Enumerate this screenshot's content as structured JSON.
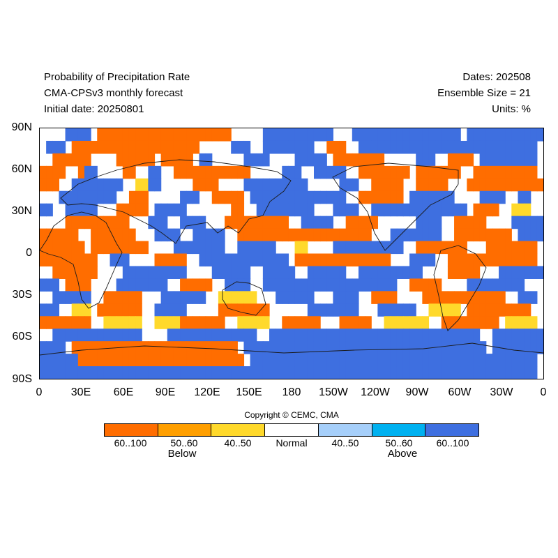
{
  "header": {
    "left": [
      "Probability of Precipitation Rate",
      "CMA-CPSv3 monthly forecast",
      "Initial date: 20250801"
    ],
    "right": [
      "Dates: 202508",
      "Ensemble Size = 21",
      "Units: %"
    ]
  },
  "axes": {
    "lat_labels": [
      "90N",
      "60N",
      "30N",
      "0",
      "30S",
      "60S",
      "90S"
    ],
    "lon_labels": [
      "0",
      "30E",
      "60E",
      "90E",
      "120E",
      "150E",
      "180",
      "150W",
      "120W",
      "90W",
      "60W",
      "30W",
      "0"
    ]
  },
  "copyright": "Copyright © CEMC, CMA",
  "colorbar": {
    "colors": [
      "#ff6d00",
      "#ff9f00",
      "#ffd92b",
      "#ffffff",
      "#a6cffa",
      "#00b1f0",
      "#3e6fe0"
    ],
    "labels": [
      "60..100",
      "50..60",
      "40..50",
      "Normal",
      "40..50",
      "50..60",
      "60..100"
    ],
    "groups": [
      "Below",
      "Above"
    ]
  },
  "map": {
    "region_sample": [
      "....hhhh.ooooooooooooooooooooo.....hhhhhhhhhhh...hhhhhhhhhhhhhhhhh.hhhhhhhhhhhh",
      ".hhh.oooooooooooooooooooo.....hhh..hhhhhhhh..ooo..hhhhhhhhhhhhhhhhhhhhhhhhhhhh",
      "..oooooo....oooooo.ooooo.hh.....hhhh....hhhhh.oooooooo.....hhh..oooo.hhhhhhhhh",
      "oooo..ohh....oo..hh..oooooooooooo.....hhh..hhhhh..oooooooo.ooooooo..oooooooooo",
      "ooo..hhhhhhhh..yyhh.....oooo....hhhhhhhhhh.....hhh..ooooo..ooooo...oooooooooooo",
      "...hhhhhhhhh..ooo.....hhh..ooooo.hhhhhhhhhhhhhhh..ooooooo.hhhhhhh....hhhh..hh..",
      "hh..hhhhh...ooooo.hhhhh.......oo..hhhhhhhhh...hhhh..hhhhhhhhhhhhhhh.oooo..yyy..",
      "....oooooooooo...hhh..hhhh...oooooooooo..hhhhh..ooooo......hhhh..ooooo....hhhhh",
      "oooooo..ooooooo...hhhh..hhhhh..ooooooooooooooooooooo...hhhhhhhh..ooooooooo.hhhh",
      "ooooooo.ooooooooo....hhhhhhhh..hhhhhh...yy....hhhhhhhhhhh..oooooooo...oooooooo",
      "ooooooooo..hhh....ooooo..hhhhhhhhhhhhhh.ooooooooooooooo...hhhh..oooooooooooooo",
      "..ooooooo....hhhhhhhhhh....hhhhhh..hhhhh..hhhhhh..hhhhhhhhhh....ooooo...hhhhhhh",
      "hhh.oooo....hhhhhhhh..ooooo..hhhh..hhhhhhhhhhhhhhhhhhhhh..ooooo....hhhhhhhhh...",
      "..hhhhhh..oooooo...hhhhhhh..yyyyyy...hhhhhh...hhhh..oooo....ooooooooooooo..hhh",
      "hhh..yyy.ooooooo..hhhhh.....oooooooo......hhhhhhhh...hhhhhh..yyyyy.oooooooooo.",
      "oooooooo..yyyyyy..yyyyooooooo..yyyyy..oooooo...ooooo..yyyyyyy..ooooooooo.yyyyy",
      "..hhhhhhhhhhhhhh....hhhhhhhhhhhhhh..hhhhhhhhhhhhhhhhhhhhhhhhhhhhhhhhh..hhhhhhhh",
      "hhhh.oooooooooooooooooooooooooo.hhhhhhhhhhhhhhhhhhhhhhhhhhhhhhhhhhhhhh.hhhhhhhh",
      "hhhhhhoooooooooooooooooooooooooo.hhhhhhhhhhhhhhhhhhhhhhhhhhhhhhhhhhhhhhhhhhhhh",
      "hhhhhhhhhhhhhhhhhhhhhhhhhhhhhhhhhhhhhhhhhhhhhhhhhhhhhhhhhhhhhhhhhhhhhhhhhhhhhh"
    ],
    "region_legend": "o = below 60..100, y = below 40..50, h = above 60..100, . = normal"
  }
}
